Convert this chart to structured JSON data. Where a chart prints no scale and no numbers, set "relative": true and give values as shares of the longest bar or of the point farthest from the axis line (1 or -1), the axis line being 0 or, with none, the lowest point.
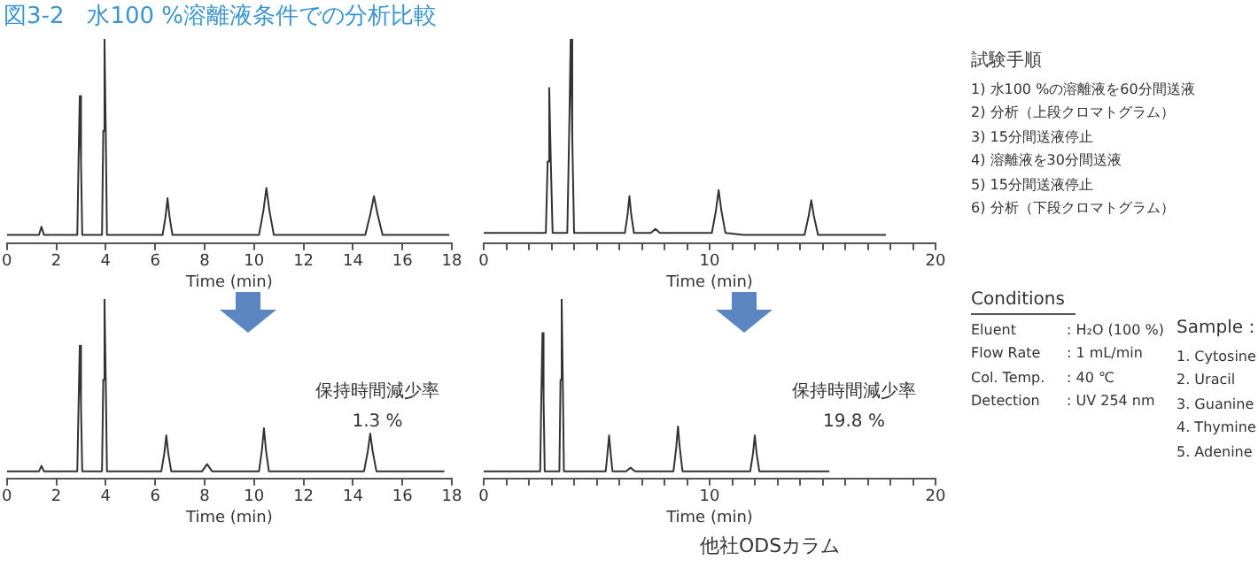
{
  "chart_data": [
    {
      "type": "line",
      "title": "図3-2　水100 %溶離液条件での分析比較",
      "relative": true,
      "xlabel": "Time (min)",
      "xlim": [
        0,
        18
      ],
      "xticks": [
        0,
        2,
        4,
        6,
        8,
        10,
        12,
        14,
        16,
        18
      ],
      "series": [
        {
          "color": "#333333",
          "x": [
            0,
            1.3,
            1.4,
            1.5,
            2.85,
            2.9,
            2.95,
            3.0,
            3.05,
            3.85,
            3.9,
            3.95,
            4.0,
            4.05,
            6.3,
            6.42,
            6.5,
            6.58,
            6.7,
            10.2,
            10.38,
            10.5,
            10.62,
            10.8,
            14.5,
            14.7,
            14.85,
            15.0,
            15.2,
            17.9
          ],
          "values": [
            0.04,
            0.04,
            0.08,
            0.04,
            0.04,
            0.4,
            0.72,
            0.4,
            0.04,
            0.04,
            0.55,
            1,
            0.55,
            0.04,
            0.04,
            0.13,
            0.22,
            0.13,
            0.04,
            0.04,
            0.16,
            0.27,
            0.16,
            0.04,
            0.04,
            0.14,
            0.23,
            0.14,
            0.04,
            0.04
          ]
        }
      ]
    },
    {
      "type": "line",
      "relative": true,
      "xlabel": "Time (min)",
      "xlim": [
        0,
        20
      ],
      "xticks": [
        0,
        {
          "value": 1,
          "label": null
        },
        {
          "value": 2,
          "label": null
        },
        {
          "value": 3,
          "label": null
        },
        {
          "value": 4,
          "label": null
        },
        {
          "value": 5,
          "label": null
        },
        {
          "value": 6,
          "label": null
        },
        {
          "value": 7,
          "label": null
        },
        {
          "value": 8,
          "label": null
        },
        {
          "value": 9,
          "label": null
        },
        10,
        {
          "value": 11,
          "label": null
        },
        {
          "value": 12,
          "label": null
        },
        {
          "value": 13,
          "label": null
        },
        {
          "value": 14,
          "label": null
        },
        {
          "value": 15,
          "label": null
        },
        {
          "value": 16,
          "label": null
        },
        {
          "value": 17,
          "label": null
        },
        {
          "value": 18,
          "label": null
        },
        {
          "value": 19,
          "label": null
        },
        20
      ],
      "series": [
        {
          "color": "#333333",
          "x": [
            0,
            2.75,
            2.83,
            2.9,
            2.97,
            3.05,
            3.7,
            3.78,
            3.85,
            3.92,
            4.0,
            6.25,
            6.37,
            6.45,
            6.53,
            6.65,
            7.4,
            7.6,
            7.8,
            10.1,
            10.28,
            10.4,
            10.52,
            10.7,
            11.5,
            14.2,
            14.38,
            14.5,
            14.62,
            14.8,
            17.8
          ],
          "values": [
            0.05,
            0.05,
            0.4,
            0.76,
            0.4,
            0.05,
            0.05,
            0.52,
            1,
            0.52,
            0.05,
            0.05,
            0.14,
            0.23,
            0.14,
            0.05,
            0.05,
            0.07,
            0.05,
            0.05,
            0.16,
            0.26,
            0.16,
            0.05,
            0.04,
            0.04,
            0.13,
            0.21,
            0.13,
            0.04,
            0.04
          ]
        }
      ]
    },
    {
      "type": "line",
      "relative": true,
      "xlabel": "Time (min)",
      "xlim": [
        0,
        18
      ],
      "xticks": [
        0,
        2,
        4,
        6,
        8,
        10,
        12,
        14,
        16,
        18
      ],
      "annotations": [
        "保持時間減少率",
        "1.3 %"
      ],
      "series": [
        {
          "color": "#333333",
          "x": [
            0,
            1.3,
            1.4,
            1.5,
            2.85,
            2.9,
            2.95,
            3.0,
            3.05,
            3.85,
            3.9,
            3.95,
            4.0,
            4.05,
            6.25,
            6.37,
            6.45,
            6.53,
            6.65,
            7.9,
            8.1,
            8.3,
            10.2,
            10.32,
            10.4,
            10.48,
            10.6,
            14.45,
            14.6,
            14.7,
            14.8,
            14.95,
            17.7
          ],
          "values": [
            0.04,
            0.04,
            0.07,
            0.04,
            0.04,
            0.4,
            0.74,
            0.4,
            0.04,
            0.04,
            0.55,
            1,
            0.55,
            0.04,
            0.04,
            0.14,
            0.24,
            0.14,
            0.04,
            0.04,
            0.08,
            0.04,
            0.04,
            0.16,
            0.28,
            0.16,
            0.04,
            0.04,
            0.15,
            0.25,
            0.15,
            0.04,
            0.04
          ]
        }
      ]
    },
    {
      "type": "line",
      "relative": true,
      "xlabel": "Time (min)",
      "subtitle": "他社ODSカラム",
      "xlim": [
        0,
        20
      ],
      "xticks": [
        0,
        {
          "value": 1,
          "label": null
        },
        {
          "value": 2,
          "label": null
        },
        {
          "value": 3,
          "label": null
        },
        {
          "value": 4,
          "label": null
        },
        {
          "value": 5,
          "label": null
        },
        {
          "value": 6,
          "label": null
        },
        {
          "value": 7,
          "label": null
        },
        {
          "value": 8,
          "label": null
        },
        {
          "value": 9,
          "label": null
        },
        10,
        {
          "value": 11,
          "label": null
        },
        {
          "value": 12,
          "label": null
        },
        {
          "value": 13,
          "label": null
        },
        {
          "value": 14,
          "label": null
        },
        {
          "value": 15,
          "label": null
        },
        {
          "value": 16,
          "label": null
        },
        {
          "value": 17,
          "label": null
        },
        {
          "value": 18,
          "label": null
        },
        {
          "value": 19,
          "label": null
        },
        20
      ],
      "annotations": [
        "保持時間減少率",
        "19.8 %"
      ],
      "series": [
        {
          "color": "#333333",
          "x": [
            0,
            2.5,
            2.55,
            2.6,
            2.65,
            2.7,
            3.35,
            3.4,
            3.45,
            3.5,
            3.55,
            5.4,
            5.48,
            5.55,
            5.62,
            5.7,
            6.3,
            6.5,
            6.7,
            8.4,
            8.52,
            8.6,
            8.68,
            8.8,
            11.8,
            11.92,
            12.0,
            12.08,
            12.2,
            15.3
          ],
          "values": [
            0.04,
            0.04,
            0.45,
            0.81,
            0.45,
            0.04,
            0.04,
            0.55,
            1,
            0.55,
            0.04,
            0.04,
            0.14,
            0.24,
            0.14,
            0.04,
            0.04,
            0.06,
            0.04,
            0.04,
            0.17,
            0.29,
            0.17,
            0.04,
            0.04,
            0.14,
            0.24,
            0.14,
            0.04,
            0.04
          ]
        }
      ]
    },
    {
      "type": "other",
      "title": "試験手順",
      "annotations": [
        "1) 水100 %の溶離液を60分間送液",
        "2) 分析（上段クロマトグラム）",
        "3) 15分間送液停止",
        "4) 溶離液を30分間送液",
        "5) 15分間送液停止",
        "6) 分析（下段クロマトグラム）"
      ]
    },
    {
      "type": "other",
      "title": "Conditions",
      "annotations": [
        "Eluent",
        ": H₂O (100 %)",
        "Flow Rate",
        ": 1 mL/min",
        "Col. Temp.",
        ": 40 ℃",
        "Detection",
        ": UV 254 nm"
      ]
    },
    {
      "type": "other",
      "title": "Sample：",
      "annotations": [
        "1. Cytosine",
        "2. Uracil",
        "3. Guanine",
        "4. Thymine",
        "5. Adenine"
      ]
    }
  ]
}
